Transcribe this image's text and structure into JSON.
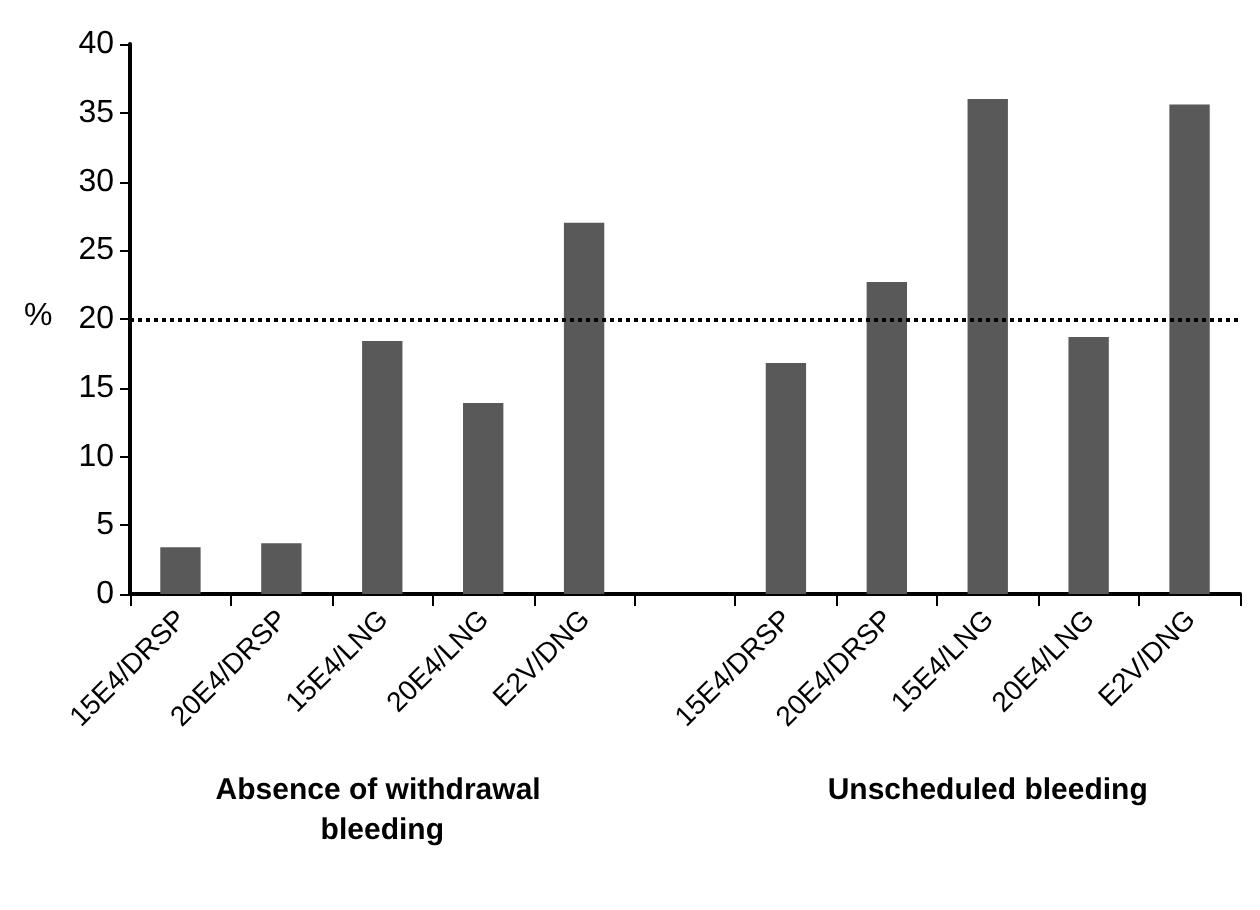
{
  "chart_data": {
    "type": "bar",
    "ylabel": "%",
    "categories": [
      "15E4/DRSP",
      "20E4/DRSP",
      "15E4/LNG",
      "20E4/LNG",
      "E2V/DNG",
      null,
      "15E4/DRSP",
      "20E4/DRSP",
      "15E4/LNG",
      "20E4/LNG",
      "E2V/DNG"
    ],
    "series": [
      {
        "color": "#595959",
        "values": [
          3.4,
          3.7,
          18.4,
          13.9,
          27.0,
          null,
          16.8,
          22.7,
          36.0,
          18.7,
          35.6
        ]
      }
    ],
    "ylim": [
      0,
      40
    ],
    "yticks": [
      0,
      5,
      10,
      15,
      20,
      25,
      30,
      35,
      40
    ],
    "grid": false,
    "ref_lines": [
      {
        "axis": "y",
        "value": 20,
        "color": "#000000",
        "line_style": "dotted"
      }
    ],
    "annotations": [
      "Absence of withdrawal bleeding",
      "Unscheduled bleeding"
    ]
  }
}
